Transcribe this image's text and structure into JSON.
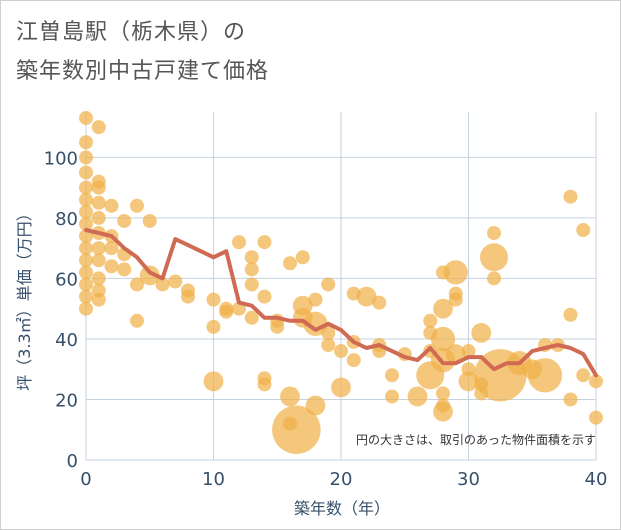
{
  "chart_data": {
    "type": "scatter",
    "title": [
      "江曽島駅（栃木県）の",
      "築年数別中古戸建て価格"
    ],
    "xlabel": "築年数（年）",
    "ylabel": "坪（3.3㎡）単価（万円）",
    "xlim": [
      0,
      40
    ],
    "ylim": [
      0,
      115
    ],
    "xticks": [
      0,
      10,
      20,
      30,
      40
    ],
    "yticks": [
      0,
      20,
      40,
      60,
      80,
      100
    ],
    "grid": true,
    "annotation": "円の大きさは、取引のあった物件面積を示す",
    "colors": {
      "bubble": "#f0b24a",
      "line": "#d06a52",
      "grid": "#c5d2e0",
      "axis_text": "#37506a"
    },
    "series": [
      {
        "kind": "bubbles",
        "points": [
          {
            "x": 0,
            "y": 113,
            "s": 1
          },
          {
            "x": 0,
            "y": 105,
            "s": 1
          },
          {
            "x": 0,
            "y": 100,
            "s": 1
          },
          {
            "x": 0,
            "y": 95,
            "s": 1
          },
          {
            "x": 0,
            "y": 90,
            "s": 1
          },
          {
            "x": 0,
            "y": 86,
            "s": 1
          },
          {
            "x": 0,
            "y": 82,
            "s": 1
          },
          {
            "x": 0,
            "y": 78,
            "s": 1
          },
          {
            "x": 0,
            "y": 74,
            "s": 1
          },
          {
            "x": 0,
            "y": 70,
            "s": 1
          },
          {
            "x": 0,
            "y": 66,
            "s": 1
          },
          {
            "x": 0,
            "y": 62,
            "s": 1
          },
          {
            "x": 0,
            "y": 58,
            "s": 1
          },
          {
            "x": 0,
            "y": 54,
            "s": 1
          },
          {
            "x": 0,
            "y": 50,
            "s": 1
          },
          {
            "x": 1,
            "y": 110,
            "s": 1
          },
          {
            "x": 1,
            "y": 92,
            "s": 1
          },
          {
            "x": 1,
            "y": 90,
            "s": 1
          },
          {
            "x": 1,
            "y": 85,
            "s": 1
          },
          {
            "x": 1,
            "y": 80,
            "s": 1
          },
          {
            "x": 1,
            "y": 75,
            "s": 1
          },
          {
            "x": 1,
            "y": 70,
            "s": 1
          },
          {
            "x": 1,
            "y": 66,
            "s": 1
          },
          {
            "x": 1,
            "y": 60,
            "s": 1
          },
          {
            "x": 1,
            "y": 56,
            "s": 1
          },
          {
            "x": 1,
            "y": 53,
            "s": 1
          },
          {
            "x": 2,
            "y": 84,
            "s": 1
          },
          {
            "x": 2,
            "y": 74,
            "s": 1
          },
          {
            "x": 2,
            "y": 70,
            "s": 1
          },
          {
            "x": 2,
            "y": 64,
            "s": 1
          },
          {
            "x": 3,
            "y": 79,
            "s": 1
          },
          {
            "x": 3,
            "y": 68,
            "s": 1
          },
          {
            "x": 3,
            "y": 63,
            "s": 1
          },
          {
            "x": 4,
            "y": 84,
            "s": 1
          },
          {
            "x": 4,
            "y": 58,
            "s": 1
          },
          {
            "x": 4,
            "y": 46,
            "s": 1
          },
          {
            "x": 5,
            "y": 79,
            "s": 1
          },
          {
            "x": 5,
            "y": 61,
            "s": 2
          },
          {
            "x": 6,
            "y": 58,
            "s": 1
          },
          {
            "x": 7,
            "y": 59,
            "s": 1
          },
          {
            "x": 8,
            "y": 56,
            "s": 1
          },
          {
            "x": 8,
            "y": 54,
            "s": 1
          },
          {
            "x": 10,
            "y": 53,
            "s": 1
          },
          {
            "x": 10,
            "y": 44,
            "s": 1
          },
          {
            "x": 10,
            "y": 26,
            "s": 2
          },
          {
            "x": 11,
            "y": 50,
            "s": 1
          },
          {
            "x": 11,
            "y": 49,
            "s": 1
          },
          {
            "x": 12,
            "y": 72,
            "s": 1
          },
          {
            "x": 12,
            "y": 50,
            "s": 1
          },
          {
            "x": 13,
            "y": 67,
            "s": 1
          },
          {
            "x": 13,
            "y": 63,
            "s": 1
          },
          {
            "x": 13,
            "y": 58,
            "s": 1
          },
          {
            "x": 13,
            "y": 47,
            "s": 1
          },
          {
            "x": 14,
            "y": 72,
            "s": 1
          },
          {
            "x": 14,
            "y": 54,
            "s": 1
          },
          {
            "x": 14,
            "y": 27,
            "s": 1
          },
          {
            "x": 14,
            "y": 25,
            "s": 1
          },
          {
            "x": 15,
            "y": 46,
            "s": 1
          },
          {
            "x": 15,
            "y": 44,
            "s": 1
          },
          {
            "x": 16,
            "y": 65,
            "s": 1
          },
          {
            "x": 16,
            "y": 21,
            "s": 2
          },
          {
            "x": 16,
            "y": 12,
            "s": 1
          },
          {
            "x": 16.5,
            "y": 10,
            "s": 12
          },
          {
            "x": 17,
            "y": 67,
            "s": 1
          },
          {
            "x": 17,
            "y": 51,
            "s": 2
          },
          {
            "x": 17,
            "y": 47,
            "s": 2
          },
          {
            "x": 18,
            "y": 53,
            "s": 1
          },
          {
            "x": 18,
            "y": 45,
            "s": 3
          },
          {
            "x": 18,
            "y": 18,
            "s": 2
          },
          {
            "x": 19,
            "y": 58,
            "s": 1
          },
          {
            "x": 19,
            "y": 42,
            "s": 1
          },
          {
            "x": 19,
            "y": 38,
            "s": 1
          },
          {
            "x": 20,
            "y": 36,
            "s": 1
          },
          {
            "x": 20,
            "y": 24,
            "s": 2
          },
          {
            "x": 21,
            "y": 55,
            "s": 1
          },
          {
            "x": 21,
            "y": 39,
            "s": 1
          },
          {
            "x": 21,
            "y": 33,
            "s": 1
          },
          {
            "x": 22,
            "y": 54,
            "s": 2
          },
          {
            "x": 23,
            "y": 52,
            "s": 1
          },
          {
            "x": 23,
            "y": 38,
            "s": 1
          },
          {
            "x": 23,
            "y": 36,
            "s": 1
          },
          {
            "x": 24,
            "y": 28,
            "s": 1
          },
          {
            "x": 24,
            "y": 21,
            "s": 1
          },
          {
            "x": 25,
            "y": 35,
            "s": 1
          },
          {
            "x": 26,
            "y": 21,
            "s": 2
          },
          {
            "x": 27,
            "y": 46,
            "s": 1
          },
          {
            "x": 27,
            "y": 42,
            "s": 1
          },
          {
            "x": 27,
            "y": 36,
            "s": 1
          },
          {
            "x": 27,
            "y": 28,
            "s": 4
          },
          {
            "x": 28,
            "y": 62,
            "s": 1
          },
          {
            "x": 28,
            "y": 50,
            "s": 2
          },
          {
            "x": 28,
            "y": 40,
            "s": 3
          },
          {
            "x": 28,
            "y": 33,
            "s": 3
          },
          {
            "x": 28,
            "y": 22,
            "s": 1
          },
          {
            "x": 28,
            "y": 18,
            "s": 1
          },
          {
            "x": 28,
            "y": 16,
            "s": 2
          },
          {
            "x": 29,
            "y": 62,
            "s": 3
          },
          {
            "x": 29,
            "y": 55,
            "s": 1
          },
          {
            "x": 29,
            "y": 53,
            "s": 1
          },
          {
            "x": 29,
            "y": 35,
            "s": 2
          },
          {
            "x": 30,
            "y": 36,
            "s": 1
          },
          {
            "x": 30,
            "y": 30,
            "s": 1
          },
          {
            "x": 30,
            "y": 26,
            "s": 2
          },
          {
            "x": 31,
            "y": 42,
            "s": 2
          },
          {
            "x": 31,
            "y": 25,
            "s": 1
          },
          {
            "x": 31,
            "y": 22,
            "s": 1
          },
          {
            "x": 32,
            "y": 75,
            "s": 1
          },
          {
            "x": 32,
            "y": 67,
            "s": 4
          },
          {
            "x": 32,
            "y": 60,
            "s": 1
          },
          {
            "x": 32.5,
            "y": 28,
            "s": 14
          },
          {
            "x": 34,
            "y": 32,
            "s": 3
          },
          {
            "x": 35,
            "y": 30,
            "s": 2
          },
          {
            "x": 36,
            "y": 28,
            "s": 6
          },
          {
            "x": 36,
            "y": 38,
            "s": 1
          },
          {
            "x": 37,
            "y": 38,
            "s": 1
          },
          {
            "x": 38,
            "y": 87,
            "s": 1
          },
          {
            "x": 38,
            "y": 48,
            "s": 1
          },
          {
            "x": 38,
            "y": 20,
            "s": 1
          },
          {
            "x": 39,
            "y": 76,
            "s": 1
          },
          {
            "x": 39,
            "y": 28,
            "s": 1
          },
          {
            "x": 40,
            "y": 26,
            "s": 1
          },
          {
            "x": 40,
            "y": 14,
            "s": 1
          }
        ]
      },
      {
        "kind": "line",
        "x": [
          0,
          1,
          2,
          3,
          4,
          5,
          6,
          7,
          8,
          9,
          10,
          11,
          12,
          13,
          14,
          15,
          16,
          17,
          18,
          19,
          20,
          21,
          22,
          23,
          24,
          25,
          26,
          27,
          28,
          29,
          30,
          31,
          32,
          33,
          34,
          35,
          36,
          37,
          38,
          39,
          40
        ],
        "y": [
          76,
          75,
          74,
          70,
          67,
          62,
          60,
          73,
          71,
          69,
          67,
          69,
          52,
          51,
          47,
          47,
          46,
          46,
          43,
          45,
          43,
          39,
          37,
          38,
          36,
          34,
          33,
          37,
          32,
          32,
          34,
          34,
          30,
          32,
          32,
          36,
          37,
          38,
          37,
          35,
          28
        ]
      }
    ]
  }
}
